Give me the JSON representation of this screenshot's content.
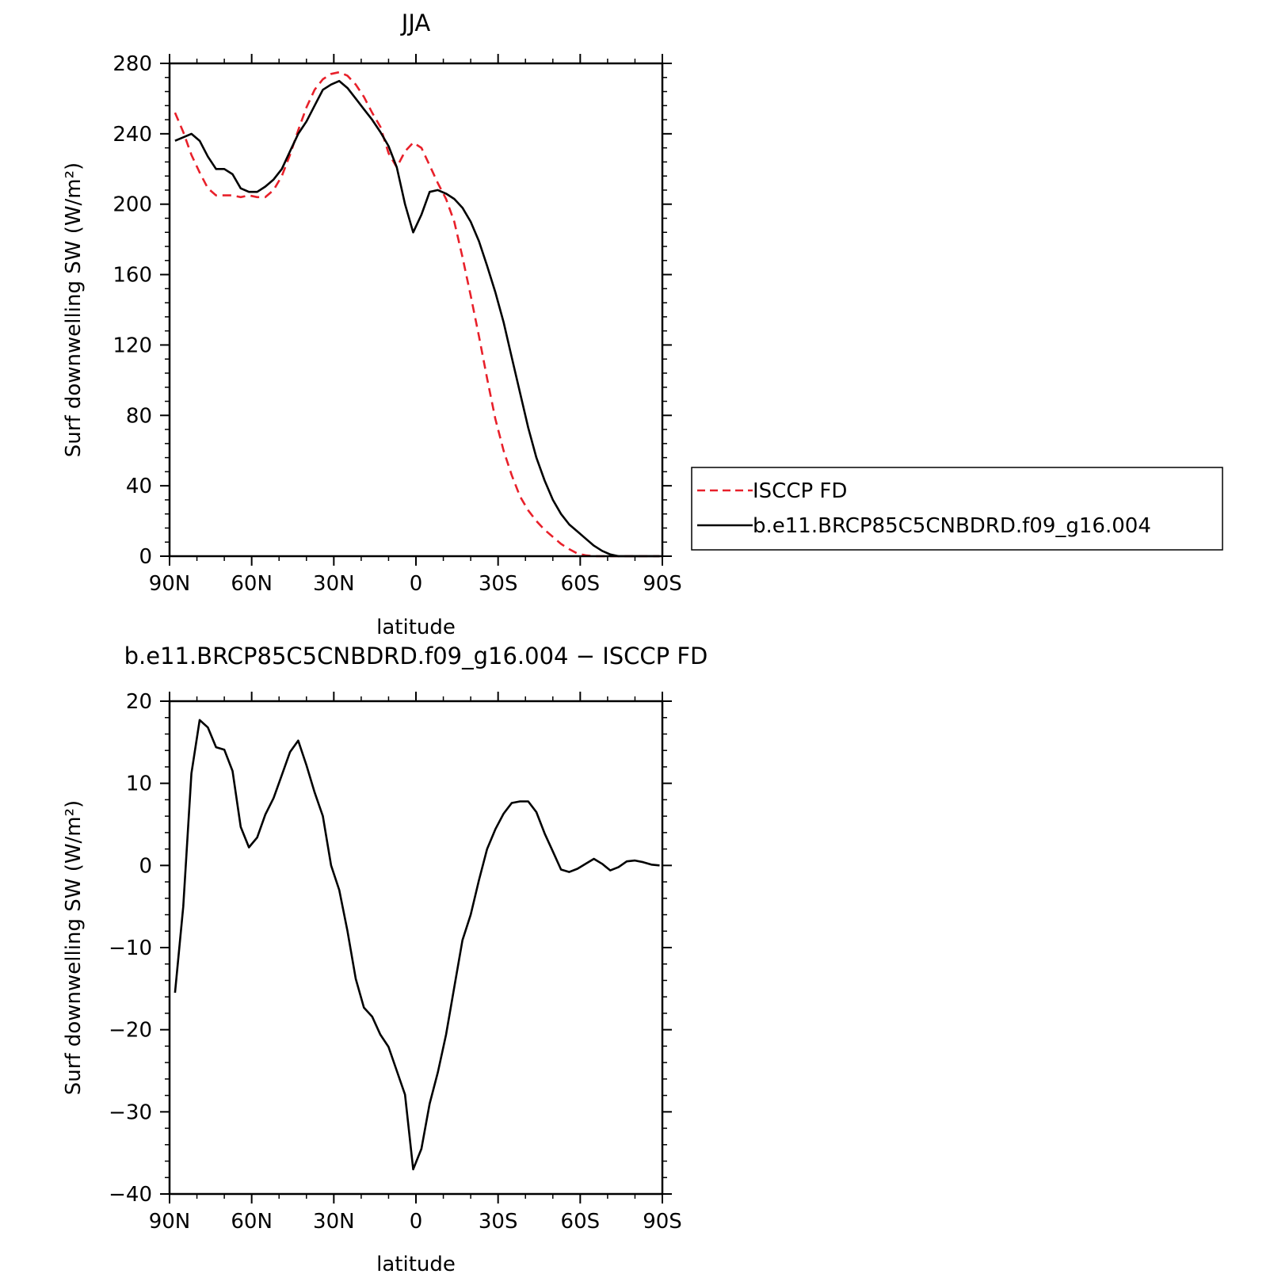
{
  "chart_data": [
    {
      "type": "line",
      "title": "JJA",
      "xlabel": "latitude",
      "ylabel": "Surf downwelling SW (W/m²)",
      "xlim": [
        90,
        -90
      ],
      "ylim": [
        0,
        280
      ],
      "xticks": [
        {
          "value": 90,
          "label": "90N"
        },
        {
          "value": 60,
          "label": "60N"
        },
        {
          "value": 30,
          "label": "30N"
        },
        {
          "value": 0,
          "label": "0"
        },
        {
          "value": -30,
          "label": "30S"
        },
        {
          "value": -60,
          "label": "60S"
        },
        {
          "value": -90,
          "label": "90S"
        }
      ],
      "yticks": [
        {
          "value": 0,
          "label": "0"
        },
        {
          "value": 40,
          "label": "40"
        },
        {
          "value": 80,
          "label": "80"
        },
        {
          "value": 120,
          "label": "120"
        },
        {
          "value": 160,
          "label": "160"
        },
        {
          "value": 200,
          "label": "200"
        },
        {
          "value": 240,
          "label": "240"
        },
        {
          "value": 280,
          "label": "280"
        }
      ],
      "grid": false,
      "legend": "right",
      "series": [
        {
          "name": "ISCCP FD",
          "color": "#e8202a",
          "dash": "dashed",
          "x": [
            88,
            85,
            82,
            79,
            76,
            73,
            70,
            67,
            64,
            61,
            58,
            55,
            52,
            49,
            46,
            43,
            40,
            37,
            34,
            31,
            28,
            25,
            22,
            19,
            16,
            13,
            10,
            7,
            4,
            1,
            -2,
            -5,
            -8,
            -11,
            -14,
            -17,
            -20,
            -23,
            -26,
            -29,
            -32,
            -35,
            -38,
            -41,
            -44,
            -47,
            -50,
            -53,
            -56,
            -59,
            -62,
            -65,
            -68,
            -71,
            -74,
            -77,
            -80,
            -83,
            -86,
            -89
          ],
          "y": [
            252,
            241,
            228,
            218,
            209,
            205,
            205,
            205,
            204,
            205,
            204,
            204,
            208,
            216,
            228,
            242,
            255,
            265,
            271,
            274,
            275,
            273,
            268,
            261,
            252,
            244,
            229,
            221,
            230,
            235,
            232,
            222,
            212,
            203,
            190,
            170,
            148,
            125,
            101,
            78,
            60,
            46,
            34,
            26,
            20,
            15,
            11,
            7,
            4,
            1.5,
            0.5,
            0,
            0,
            0,
            0,
            0,
            0,
            0,
            0,
            0
          ]
        },
        {
          "name": "b.e11.BRCP85C5CNBDRD.f09_g16.004",
          "color": "#000000",
          "dash": "solid",
          "x": [
            88,
            85,
            82,
            79,
            76,
            73,
            70,
            67,
            64,
            61,
            58,
            55,
            52,
            49,
            46,
            43,
            40,
            37,
            34,
            31,
            28,
            25,
            22,
            19,
            16,
            13,
            10,
            7,
            4,
            1,
            -2,
            -5,
            -8,
            -11,
            -14,
            -17,
            -20,
            -23,
            -26,
            -29,
            -32,
            -35,
            -38,
            -41,
            -44,
            -47,
            -50,
            -53,
            -56,
            -59,
            -62,
            -65,
            -68,
            -71,
            -74,
            -77,
            -80,
            -83,
            -86,
            -89
          ],
          "y": [
            236,
            238,
            240,
            236,
            227,
            220,
            220,
            217,
            209,
            207,
            207,
            210,
            214,
            220,
            230,
            240,
            247,
            256,
            265,
            268,
            270,
            266,
            260,
            254,
            248,
            241,
            233,
            221,
            200,
            184,
            194,
            207,
            208,
            206,
            203,
            198,
            190,
            179,
            165,
            150,
            133,
            113,
            93,
            73,
            56,
            43,
            32,
            24,
            18,
            14,
            10,
            6,
            3,
            1,
            0,
            0,
            0,
            0,
            0,
            0
          ]
        }
      ]
    },
    {
      "type": "line",
      "title": "b.e11.BRCP85C5CNBDRD.f09_g16.004 − ISCCP FD",
      "xlabel": "latitude",
      "ylabel": "Surf downwelling SW (W/m²)",
      "xlim": [
        90,
        -90
      ],
      "ylim": [
        -40,
        20
      ],
      "xticks": [
        {
          "value": 90,
          "label": "90N"
        },
        {
          "value": 60,
          "label": "60N"
        },
        {
          "value": 30,
          "label": "30N"
        },
        {
          "value": 0,
          "label": "0"
        },
        {
          "value": -30,
          "label": "30S"
        },
        {
          "value": -60,
          "label": "60S"
        },
        {
          "value": -90,
          "label": "90S"
        }
      ],
      "yticks": [
        {
          "value": -40,
          "label": "−40"
        },
        {
          "value": -30,
          "label": "−30"
        },
        {
          "value": -20,
          "label": "−20"
        },
        {
          "value": -10,
          "label": "−10"
        },
        {
          "value": 0,
          "label": "0"
        },
        {
          "value": 10,
          "label": "10"
        },
        {
          "value": 20,
          "label": "20"
        }
      ],
      "grid": false,
      "series": [
        {
          "color": "#000000",
          "dash": "solid",
          "x": [
            88,
            85,
            82,
            79,
            76,
            73,
            70,
            67,
            64,
            61,
            58,
            55,
            52,
            49,
            46,
            43,
            40,
            37,
            34,
            31,
            28,
            25,
            22,
            19,
            16,
            13,
            10,
            7,
            4,
            1,
            -2,
            -5,
            -8,
            -11,
            -14,
            -17,
            -20,
            -23,
            -26,
            -29,
            -32,
            -35,
            -38,
            -41,
            -44,
            -47,
            -50,
            -53,
            -56,
            -59,
            -62,
            -65,
            -68,
            -71,
            -74,
            -77,
            -80,
            -83,
            -86,
            -89
          ],
          "y": [
            -15.5,
            -5,
            11.2,
            17.7,
            16.8,
            14.4,
            14.1,
            11.5,
            4.7,
            2.2,
            3.4,
            6.2,
            8.2,
            11,
            13.8,
            15.2,
            12.2,
            8.9,
            6,
            0,
            -3,
            -8,
            -13.8,
            -17.3,
            -18.4,
            -20.6,
            -22.1,
            -25,
            -27.9,
            -37,
            -34.5,
            -29,
            -25.2,
            -20.6,
            -14.8,
            -9.1,
            -6,
            -1.8,
            2,
            4.4,
            6.3,
            7.6,
            7.8,
            7.8,
            6.5,
            3.9,
            1.7,
            -0.5,
            -0.8,
            -0.4,
            0.2,
            0.8,
            0.2,
            -0.6,
            -0.2,
            0.5,
            0.6,
            0.4,
            0.1,
            0
          ]
        }
      ]
    }
  ]
}
